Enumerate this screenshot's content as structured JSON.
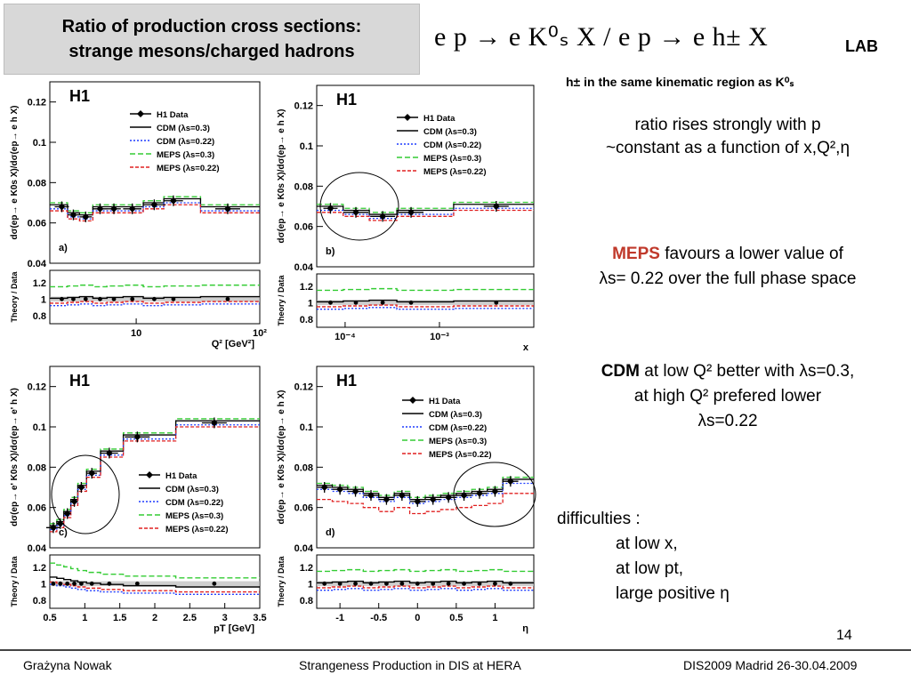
{
  "header": {
    "title_line1": "Ratio of production cross sections:",
    "title_line2": "strange mesons/charged hadrons",
    "formula": "e p → e K⁰ₛ X / e p → e h± X",
    "lab": "LAB",
    "hnote": "h±  in the same kinematic region as K⁰ₛ"
  },
  "notes": {
    "n1_line1": "ratio rises strongly with p",
    "n1_line2": "~constant as a function of x,Q²,η",
    "n2_meps": "MEPS",
    "n2_rest": " favours a lower value of",
    "n2_line2": "λs= 0.22 over the full phase space",
    "n3_cdm": "CDM",
    "n3_rest": " at low Q² better with λs=0.3,",
    "n3_line2": "at high Q² prefered  lower",
    "n3_line3": "λs=0.22",
    "n4_line1": "difficulties :",
    "n4_line2": "at low x,",
    "n4_line3": "at low pt,",
    "n4_line4": "large positive η"
  },
  "footer": {
    "author": "Grażyna Nowak",
    "talk": "Strangeness Production in DIS at HERA",
    "conf": "DIS2009 Madrid 26-30.04.2009",
    "page": "14"
  },
  "colors": {
    "data": "#000000",
    "cdm03": "#000000",
    "cdm022": "#1f3cff",
    "meps03": "#33cc33",
    "meps022": "#e02020",
    "circle": "#000000",
    "meps_text": "#c0392b"
  },
  "chart_data": [
    {
      "type": "line",
      "panel": "a)",
      "logo": "H1",
      "ylabel": "dσ(ep→ e K0s X)/dσ(ep→ e h X)",
      "xlabel": "Q² [GeV²]",
      "x_scale": "log",
      "xlim": [
        2,
        100
      ],
      "ylim": [
        0.04,
        0.13
      ],
      "yticks": [
        0.04,
        0.06,
        0.08,
        0.1,
        0.12
      ],
      "xticks": [
        "10",
        "10²"
      ],
      "ratio_ylabel": "Theory / Data",
      "ratio_yticks": [
        "0.8",
        "1",
        "1.2"
      ],
      "legend": [
        "H1 Data",
        "CDM  (λs=0.3)",
        "CDM  (λs=0.22)",
        "MEPS  (λs=0.3)",
        "MEPS  (λs=0.22)"
      ],
      "series": [
        {
          "name": "H1 Data",
          "x": [
            2.5,
            3.1,
            3.9,
            5.1,
            6.6,
            9.3,
            14,
            20,
            55
          ],
          "values": [
            0.068,
            0.064,
            0.063,
            0.067,
            0.067,
            0.067,
            0.069,
            0.071,
            0.067
          ]
        }
      ]
    },
    {
      "type": "line",
      "panel": "b)",
      "logo": "H1",
      "ylabel": "dσ(ep→ e K0s X)/dσ(ep→ e h X)",
      "xlabel": "x",
      "x_scale": "log",
      "xlim": [
        5e-05,
        0.01
      ],
      "ylim": [
        0.04,
        0.13
      ],
      "yticks": [
        0.04,
        0.06,
        0.08,
        0.1,
        0.12
      ],
      "xticks": [
        "10⁻⁴",
        "10⁻³"
      ],
      "ratio_ylabel": "Theory / Data",
      "ratio_yticks": [
        "0.8",
        "1",
        "1.2"
      ],
      "legend": [
        "H1 Data",
        "CDM  (λs=0.3)",
        "CDM  (λs=0.22)",
        "MEPS  (λs=0.3)",
        "MEPS  (λs=0.22)"
      ],
      "series": [
        {
          "name": "H1 Data",
          "x": [
            7e-05,
            0.00013,
            0.00025,
            0.0005,
            0.004
          ],
          "values": [
            0.069,
            0.067,
            0.065,
            0.067,
            0.07
          ]
        }
      ]
    },
    {
      "type": "line",
      "panel": "c)",
      "logo": "H1",
      "ylabel": "dσ(ep→ e' K0s X)/dσ(ep→ e' h X)",
      "xlabel": "pT [GeV]",
      "x_scale": "linear",
      "xlim": [
        0.5,
        3.5
      ],
      "ylim": [
        0.04,
        0.13
      ],
      "yticks": [
        0.04,
        0.06,
        0.08,
        0.1,
        0.12
      ],
      "xticks": [
        "0.5",
        "1",
        "1.5",
        "2",
        "2.5",
        "3",
        "3.5"
      ],
      "ratio_ylabel": "Theory / Data",
      "ratio_yticks": [
        "0.8",
        "1",
        "1.2"
      ],
      "legend": [
        "H1 Data",
        "CDM  (λs=0.3)",
        "CDM  (λs=0.22)",
        "MEPS  (λs=0.3)",
        "MEPS  (λs=0.22)"
      ],
      "series": [
        {
          "name": "H1 Data",
          "x": [
            0.55,
            0.65,
            0.75,
            0.85,
            0.95,
            1.1,
            1.35,
            1.75,
            2.85
          ],
          "values": [
            0.05,
            0.052,
            0.057,
            0.063,
            0.07,
            0.077,
            0.087,
            0.095,
            0.102
          ]
        }
      ]
    },
    {
      "type": "line",
      "panel": "d)",
      "logo": "H1",
      "ylabel": "dσ(ep→ e K0s X)/dσ(ep→ e h X)",
      "xlabel": "η",
      "x_scale": "linear",
      "xlim": [
        -1.3,
        1.5
      ],
      "ylim": [
        0.04,
        0.13
      ],
      "yticks": [
        0.04,
        0.06,
        0.08,
        0.1,
        0.12
      ],
      "xticks": [
        "-1",
        "-0.5",
        "0",
        "0.5",
        "1"
      ],
      "ratio_ylabel": "Theory / Data",
      "ratio_yticks": [
        "0.8",
        "1",
        "1.2"
      ],
      "legend": [
        "H1 Data",
        "CDM  (λs=0.3)",
        "CDM  (λs=0.22)",
        "MEPS  (λs=0.3)",
        "MEPS  (λs=0.22)"
      ],
      "series": [
        {
          "name": "H1 Data",
          "x": [
            -1.2,
            -1.0,
            -0.8,
            -0.6,
            -0.4,
            -0.2,
            0.0,
            0.2,
            0.4,
            0.6,
            0.8,
            1.0,
            1.2
          ],
          "values": [
            0.07,
            0.069,
            0.068,
            0.066,
            0.064,
            0.066,
            0.063,
            0.064,
            0.065,
            0.066,
            0.067,
            0.068,
            0.073
          ]
        }
      ]
    }
  ]
}
